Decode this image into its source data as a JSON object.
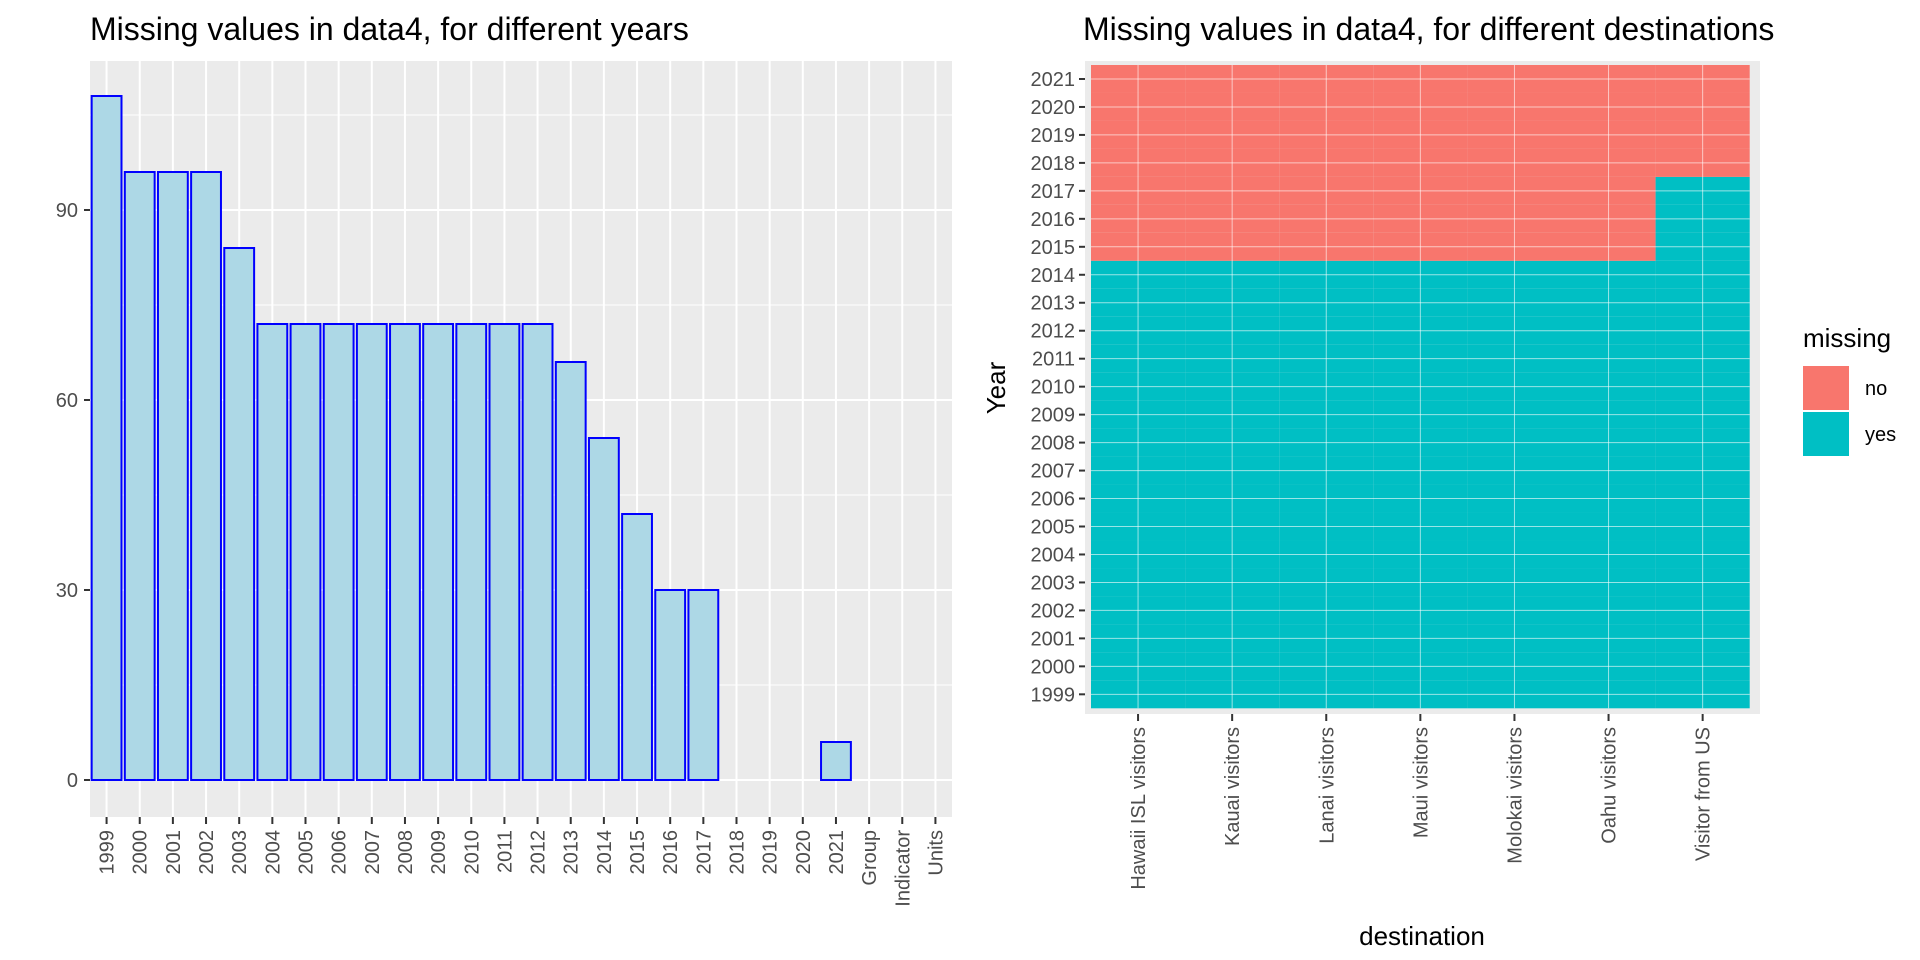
{
  "chart_data": [
    {
      "type": "bar",
      "title": "Missing values in data4, for different years",
      "xlabel": "",
      "ylabel": "",
      "categories": [
        "1999",
        "2000",
        "2001",
        "2002",
        "2003",
        "2004",
        "2005",
        "2006",
        "2007",
        "2008",
        "2009",
        "2010",
        "2011",
        "2012",
        "2013",
        "2014",
        "2015",
        "2016",
        "2017",
        "2018",
        "2019",
        "2020",
        "2021",
        "Group",
        "Indicator",
        "Units"
      ],
      "values": [
        108,
        96,
        96,
        96,
        84,
        72,
        72,
        72,
        72,
        72,
        72,
        72,
        72,
        72,
        66,
        54,
        42,
        30,
        30,
        0,
        0,
        0,
        6,
        0,
        0,
        0
      ],
      "yticks": [
        0,
        30,
        60,
        90
      ],
      "ylim": [
        0,
        113
      ],
      "bar_fill": "#add8e6",
      "bar_outline": "#0000ff",
      "grid": true
    },
    {
      "type": "heatmap",
      "title": "Missing values in data4, for different destinations",
      "xlabel": "destination",
      "ylabel": "Year",
      "x": [
        "Hawaii ISL visitors",
        "Kauai visitors",
        "Lanai visitors",
        "Maui visitors",
        "Molokai visitors",
        "Oahu visitors",
        "Visitor from US"
      ],
      "y": [
        "1999",
        "2000",
        "2001",
        "2002",
        "2003",
        "2004",
        "2005",
        "2006",
        "2007",
        "2008",
        "2009",
        "2010",
        "2011",
        "2012",
        "2013",
        "2014",
        "2015",
        "2016",
        "2017",
        "2018",
        "2019",
        "2020",
        "2021"
      ],
      "first_present_year": [
        2015,
        2015,
        2015,
        2015,
        2015,
        2015,
        2018
      ],
      "legend": {
        "title": "missing",
        "position": "right",
        "entries": [
          {
            "label": "no",
            "color": "#f8766d"
          },
          {
            "label": "yes",
            "color": "#00bfc4"
          }
        ]
      }
    }
  ]
}
